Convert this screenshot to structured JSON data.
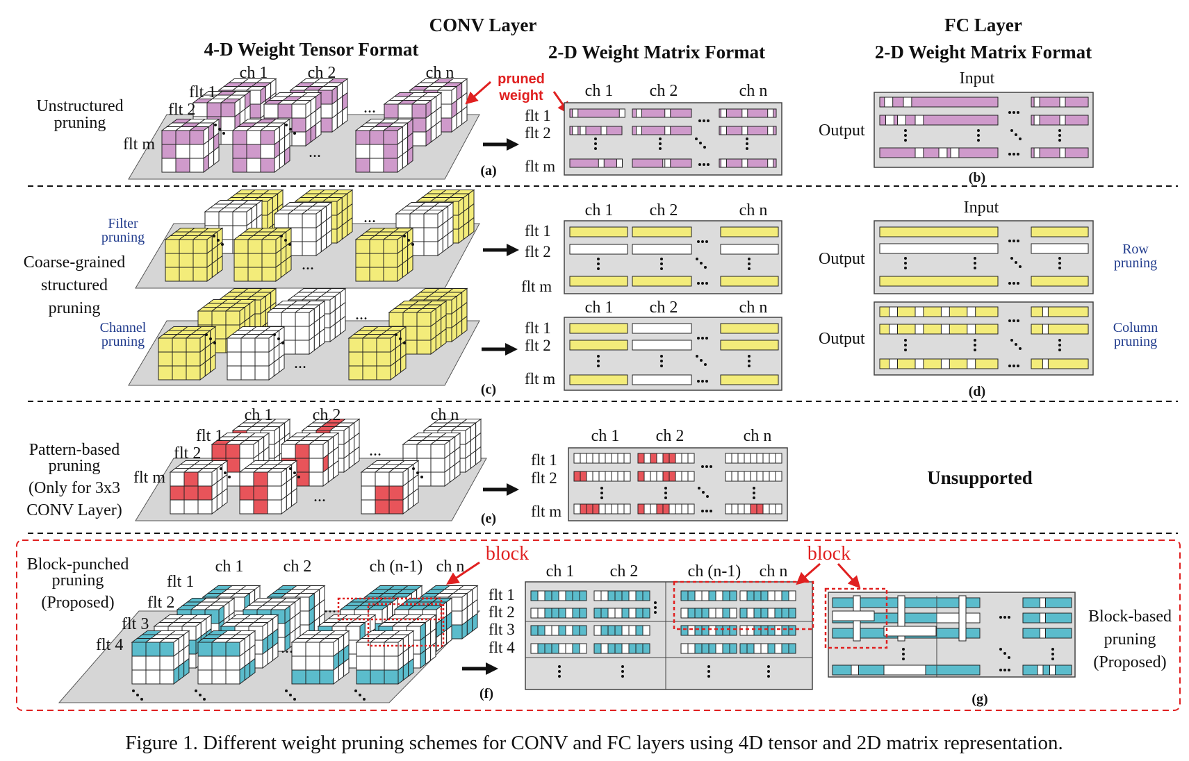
{
  "headers": {
    "conv_layer": "CONV Layer",
    "conv_4d": "4-D Weight Tensor Format",
    "conv_2d": "2-D Weight Matrix Format",
    "fc_layer": "FC Layer",
    "fc_2d": "2-D Weight Matrix Format"
  },
  "row_a": {
    "label_line1": "Unstructured",
    "label_line2": "pruning",
    "pruned_weight_1": "pruned",
    "pruned_weight_2": "weight",
    "ch1": "ch 1",
    "ch2": "ch 2",
    "chn": "ch n",
    "flt1": "flt 1",
    "flt2": "flt 2",
    "fltm": "flt m",
    "panel_a": "(a)",
    "panel_b": "(b)",
    "input": "Input",
    "output": "Output"
  },
  "row_c": {
    "filter_pruning_1": "Filter",
    "filter_pruning_2": "pruning",
    "coarse_1": "Coarse-grained",
    "coarse_2": "structured",
    "coarse_3": "pruning",
    "channel_pruning_1": "Channel",
    "channel_pruning_2": "pruning",
    "ch1": "ch 1",
    "ch2": "ch 2",
    "chn": "ch n",
    "flt1": "flt 1",
    "flt2": "flt 2",
    "fltm": "flt m",
    "panel_c": "(c)",
    "panel_d": "(d)",
    "input": "Input",
    "output": "Output",
    "row_pruning_1": "Row",
    "row_pruning_2": "pruning",
    "col_pruning_1": "Column",
    "col_pruning_2": "pruning"
  },
  "row_e": {
    "label_1": "Pattern-based",
    "label_2": "pruning",
    "label_3": "(Only for 3x3",
    "label_4": "CONV Layer)",
    "ch1": "ch 1",
    "ch2": "ch 2",
    "chn": "ch n",
    "flt1": "flt 1",
    "flt2": "flt 2",
    "fltm": "flt m",
    "panel_e": "(e)",
    "unsupported": "Unsupported"
  },
  "row_f": {
    "label_1": "Block-punched",
    "label_2": "pruning",
    "label_3": "(Proposed)",
    "block": "block",
    "ch1": "ch 1",
    "ch2": "ch 2",
    "chn1": "ch (n-1)",
    "chn": "ch n",
    "flt1": "flt 1",
    "flt2": "flt 2",
    "flt3": "flt 3",
    "flt4": "flt 4",
    "panel_f": "(f)",
    "panel_g": "(g)",
    "block_based_1": "Block-based",
    "block_based_2": "pruning",
    "block_based_3": "(Proposed)"
  },
  "ellipsis": "...",
  "caption": "Figure 1. Different weight pruning schemes for CONV and FC layers using 4D tensor and 2D matrix representation.",
  "colors": {
    "magenta": "#cf9acb",
    "yellow": "#f3ec7a",
    "red": "#e8545a",
    "cyan": "#5bbccc",
    "gray": "#dcdcdc",
    "accent_red": "#e02020",
    "blue_text": "#1f3a8c"
  }
}
